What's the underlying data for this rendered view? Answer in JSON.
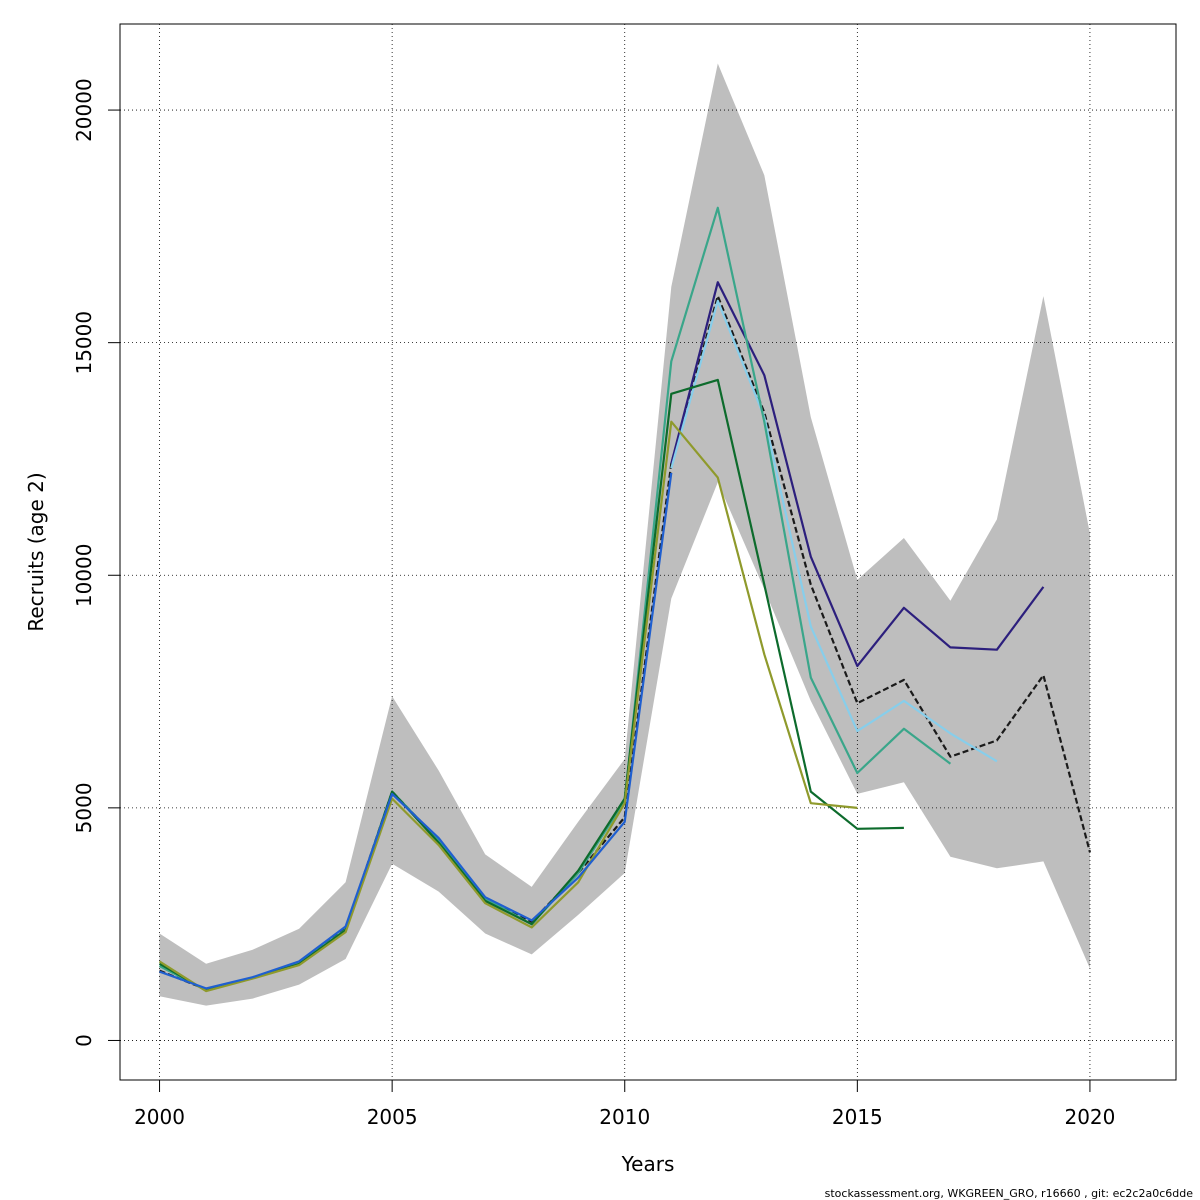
{
  "chart_data": {
    "type": "line",
    "xlabel": "Years",
    "ylabel": "Recruits (age 2)",
    "xlim": [
      1999.15,
      2021.85
    ],
    "ylim": [
      -850,
      21850
    ],
    "x_ticks": [
      2000,
      2005,
      2010,
      2015,
      2020
    ],
    "y_ticks": [
      0,
      5000,
      10000,
      15000,
      20000
    ],
    "grid": true,
    "footer": "stockassessment.org, WKGREEN_GRO, r16660 , git: ec2c2a0c6dde",
    "colors": {
      "band": "#bebebe",
      "base": "#1a1a1a",
      "navy": "#2c1f7d",
      "lightblue": "#87ceeb",
      "teal": "#3aa68a",
      "green": "#0d6b2c",
      "olive": "#8f9a2c",
      "blue": "#1f5fd0"
    },
    "confidence_band": {
      "x": [
        2000,
        2001,
        2002,
        2003,
        2004,
        2005,
        2006,
        2007,
        2008,
        2009,
        2010,
        2011,
        2012,
        2013,
        2014,
        2015,
        2016,
        2017,
        2018,
        2019,
        2020
      ],
      "lower": [
        950,
        750,
        900,
        1200,
        1750,
        3800,
        3200,
        2300,
        1850,
        2700,
        3600,
        9500,
        12000,
        9700,
        7300,
        5300,
        5550,
        3950,
        3700,
        3850,
        1550
      ],
      "upper": [
        2300,
        1650,
        1950,
        2400,
        3400,
        7400,
        5800,
        4000,
        3300,
        4700,
        6050,
        16200,
        21000,
        18600,
        13400,
        9900,
        10800,
        9450,
        11200,
        16000,
        10900
      ]
    },
    "series": [
      {
        "color_key": "base",
        "dashed": true,
        "x": [
          2000,
          2001,
          2002,
          2003,
          2004,
          2005,
          2006,
          2007,
          2008,
          2009,
          2010,
          2011,
          2012,
          2013,
          2014,
          2015,
          2016,
          2017,
          2018,
          2019,
          2020
        ],
        "values": [
          1500,
          1100,
          1350,
          1650,
          2400,
          5350,
          4300,
          3050,
          2550,
          3600,
          4800,
          12400,
          16000,
          13500,
          9800,
          7250,
          7750,
          6100,
          6450,
          7850,
          4050
        ]
      },
      {
        "color_key": "navy",
        "x": [
          2011,
          2012,
          2013,
          2014,
          2015,
          2016,
          2017,
          2018,
          2019
        ],
        "values": [
          12400,
          16300,
          14300,
          10400,
          8050,
          9300,
          8450,
          8400,
          9750
        ]
      },
      {
        "color_key": "lightblue",
        "x": [
          2011,
          2012,
          2013,
          2014,
          2015,
          2016,
          2017,
          2018
        ],
        "values": [
          12300,
          15900,
          13400,
          8900,
          6650,
          7300,
          6600,
          6000
        ]
      },
      {
        "color_key": "teal",
        "x": [
          2000,
          2001,
          2002,
          2003,
          2004,
          2005,
          2006,
          2007,
          2008,
          2009,
          2010,
          2011,
          2012,
          2013,
          2014,
          2015,
          2016,
          2017
        ],
        "values": [
          1600,
          1080,
          1350,
          1650,
          2380,
          5350,
          4300,
          3050,
          2500,
          3600,
          5150,
          14600,
          17900,
          13300,
          7800,
          5750,
          6700,
          5950
        ]
      },
      {
        "color_key": "green",
        "x": [
          2000,
          2001,
          2002,
          2003,
          2004,
          2005,
          2006,
          2007,
          2008,
          2009,
          2010,
          2011,
          2012,
          2013,
          2014,
          2015,
          2016
        ],
        "values": [
          1650,
          1070,
          1340,
          1640,
          2370,
          5350,
          4250,
          3000,
          2500,
          3650,
          5200,
          13900,
          14200,
          9800,
          5350,
          4550,
          4570
        ]
      },
      {
        "color_key": "olive",
        "x": [
          2000,
          2001,
          2002,
          2003,
          2004,
          2005,
          2006,
          2007,
          2008,
          2009,
          2010,
          2011,
          2012,
          2013,
          2014,
          2015
        ],
        "values": [
          1700,
          1060,
          1330,
          1620,
          2330,
          5200,
          4200,
          2950,
          2430,
          3400,
          5100,
          13300,
          12100,
          8300,
          5100,
          5000
        ]
      },
      {
        "color_key": "blue",
        "x": [
          2000,
          2001,
          2002,
          2003,
          2004,
          2005,
          2006,
          2007,
          2008,
          2009,
          2010,
          2011
        ],
        "values": [
          1480,
          1120,
          1360,
          1700,
          2450,
          5300,
          4350,
          3080,
          2580,
          3500,
          4700,
          12200
        ]
      }
    ]
  }
}
